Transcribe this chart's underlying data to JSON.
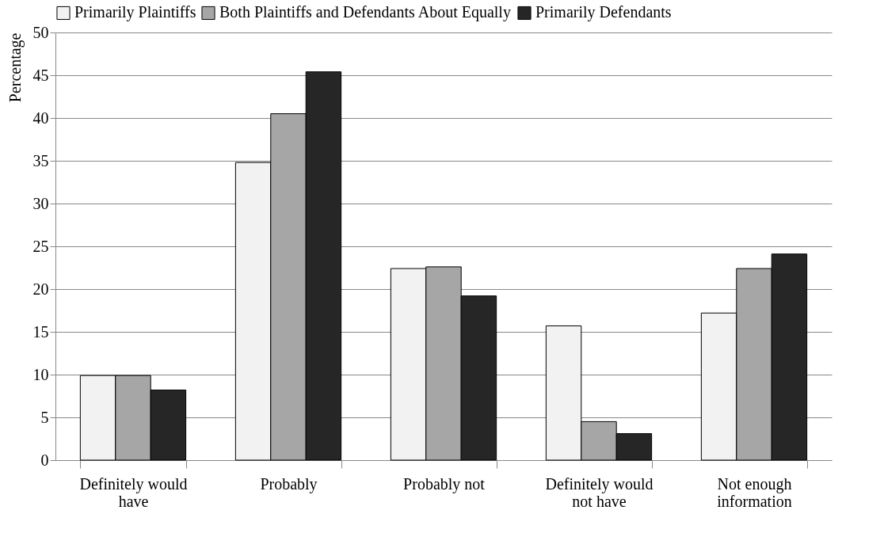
{
  "chart_data": {
    "type": "bar",
    "ylabel": "Percentage",
    "categories": [
      "Definitely would have",
      "Probably",
      "Probably not",
      "Definitely would not have",
      "Not enough information"
    ],
    "series": [
      {
        "name": "Primarily Plaintiffs",
        "color": "#f2f2f2",
        "values": [
          9.9,
          34.8,
          22.4,
          15.7,
          17.2
        ]
      },
      {
        "name": "Both Plaintiffs and Defendants About Equally",
        "color": "#a6a6a6",
        "values": [
          9.9,
          40.5,
          22.6,
          4.5,
          22.4
        ]
      },
      {
        "name": "Primarily Defendants",
        "color": "#262626",
        "values": [
          8.2,
          45.4,
          19.2,
          3.1,
          24.1
        ]
      }
    ],
    "ylim": [
      0,
      50
    ],
    "yticks": [
      0,
      5,
      10,
      15,
      20,
      25,
      30,
      35,
      40,
      45,
      50
    ],
    "grid": "y",
    "legend": "top"
  }
}
